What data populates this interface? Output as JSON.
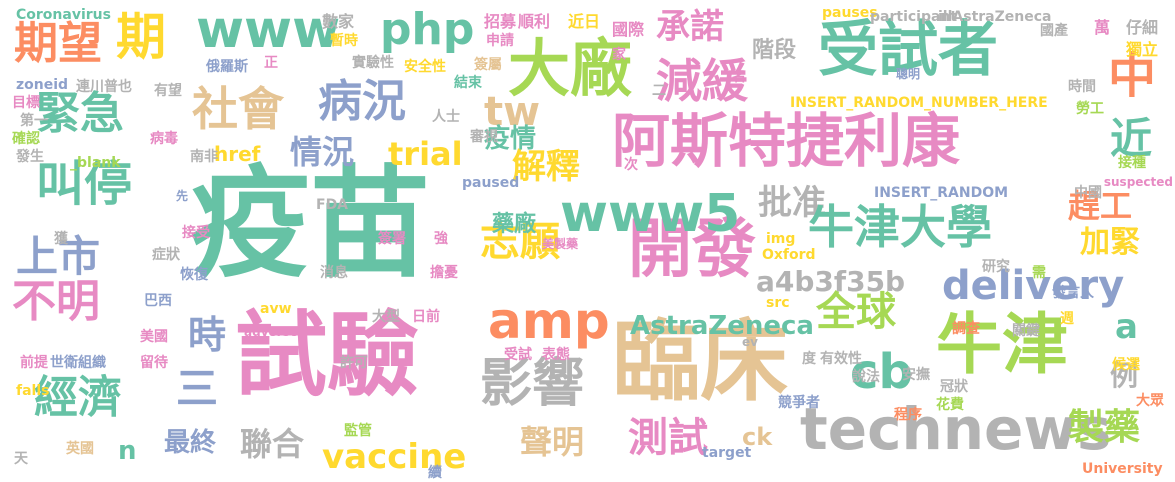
{
  "palette": {
    "green": "#66c2a5",
    "orange": "#fc8d62",
    "blue": "#8da0cb",
    "pink": "#e78ac3",
    "lime": "#a6d854",
    "yellow": "#ffd92f",
    "tan": "#e5c494",
    "gray": "#b3b3b3"
  },
  "words": [
    {
      "t": "疫苗",
      "c": "green"
    },
    {
      "t": "試驗",
      "c": "pink"
    },
    {
      "t": "臨床",
      "c": "tan"
    },
    {
      "t": "開發",
      "c": "pink"
    },
    {
      "t": "阿斯特捷利康",
      "c": "pink"
    },
    {
      "t": "受試者",
      "c": "green"
    },
    {
      "t": "大廠",
      "c": "lime"
    },
    {
      "t": "牛津",
      "c": "lime"
    },
    {
      "t": "technews",
      "c": "gray"
    },
    {
      "t": "www",
      "c": "green"
    },
    {
      "t": "期",
      "c": "yellow"
    },
    {
      "t": "期望",
      "c": "orange"
    },
    {
      "t": "php",
      "c": "green"
    },
    {
      "t": "緊急",
      "c": "green"
    },
    {
      "t": "社會",
      "c": "tan"
    },
    {
      "t": "病況",
      "c": "blue"
    },
    {
      "t": "減緩",
      "c": "pink"
    },
    {
      "t": "承諾",
      "c": "pink"
    },
    {
      "t": "中",
      "c": "orange"
    },
    {
      "t": "叫停",
      "c": "green"
    },
    {
      "t": "上市",
      "c": "blue"
    },
    {
      "t": "不明",
      "c": "pink"
    },
    {
      "t": "tw",
      "c": "tan"
    },
    {
      "t": "情況",
      "c": "blue"
    },
    {
      "t": "trial",
      "c": "yellow"
    },
    {
      "t": "解釋",
      "c": "yellow"
    },
    {
      "t": "疫情",
      "c": "green"
    },
    {
      "t": "近",
      "c": "green"
    },
    {
      "t": "www5",
      "c": "green"
    },
    {
      "t": "批准",
      "c": "gray"
    },
    {
      "t": "牛津大學",
      "c": "green"
    },
    {
      "t": "趕工",
      "c": "orange"
    },
    {
      "t": "加緊",
      "c": "yellow"
    },
    {
      "t": "志願",
      "c": "yellow"
    },
    {
      "t": "delivery",
      "c": "blue"
    },
    {
      "t": "全球",
      "c": "lime"
    },
    {
      "t": "amp",
      "c": "orange"
    },
    {
      "t": "a4b3f35b",
      "c": "gray"
    },
    {
      "t": "AstraZeneca",
      "c": "green"
    },
    {
      "t": "時",
      "c": "blue"
    },
    {
      "t": "cb",
      "c": "green"
    },
    {
      "t": "a",
      "c": "green"
    },
    {
      "t": "影響",
      "c": "gray"
    },
    {
      "t": "經濟",
      "c": "green"
    },
    {
      "t": "三",
      "c": "blue"
    },
    {
      "t": "製藥",
      "c": "lime"
    },
    {
      "t": "例",
      "c": "gray"
    },
    {
      "t": "vaccine",
      "c": "yellow"
    },
    {
      "t": "聲明",
      "c": "tan"
    },
    {
      "t": "測試",
      "c": "pink"
    },
    {
      "t": "聯合",
      "c": "gray"
    },
    {
      "t": "最終",
      "c": "blue"
    },
    {
      "t": "n",
      "c": "green"
    },
    {
      "t": "ck",
      "c": "tan"
    },
    {
      "t": "藥廠",
      "c": "green"
    },
    {
      "t": "href",
      "c": "yellow"
    },
    {
      "t": "階段",
      "c": "gray"
    },
    {
      "t": "Coronavirus",
      "c": "green"
    },
    {
      "t": "招募",
      "c": "pink"
    },
    {
      "t": "順利",
      "c": "pink"
    },
    {
      "t": "近日",
      "c": "yellow"
    },
    {
      "t": "國際",
      "c": "pink"
    },
    {
      "t": "pauses",
      "c": "yellow"
    },
    {
      "t": "participant",
      "c": "gray"
    },
    {
      "t": "illAstraZeneca",
      "c": "gray"
    },
    {
      "t": "國產",
      "c": "gray"
    },
    {
      "t": "萬",
      "c": "pink"
    },
    {
      "t": "仔細",
      "c": "gray"
    },
    {
      "t": "獨立",
      "c": "yellow"
    },
    {
      "t": "數家",
      "c": "gray"
    },
    {
      "t": "暫時",
      "c": "yellow"
    },
    {
      "t": "申請",
      "c": "pink"
    },
    {
      "t": "俄羅斯",
      "c": "blue"
    },
    {
      "t": "實驗性",
      "c": "gray"
    },
    {
      "t": "安全性",
      "c": "yellow"
    },
    {
      "t": "zoneid",
      "c": "blue"
    },
    {
      "t": "連川普也",
      "c": "gray"
    },
    {
      "t": "有望",
      "c": "gray"
    },
    {
      "t": "目標",
      "c": "pink"
    },
    {
      "t": "第一",
      "c": "gray"
    },
    {
      "t": "確認",
      "c": "lime"
    },
    {
      "t": "發生",
      "c": "gray"
    },
    {
      "t": "病毒",
      "c": "pink"
    },
    {
      "t": "_blank",
      "c": "lime"
    },
    {
      "t": "人士",
      "c": "gray"
    },
    {
      "t": "結束",
      "c": "green"
    },
    {
      "t": "簽屬",
      "c": "tan"
    },
    {
      "t": "審視",
      "c": "gray"
    },
    {
      "t": "家",
      "c": "pink"
    },
    {
      "t": "正",
      "c": "pink"
    },
    {
      "t": "名",
      "c": "pink"
    },
    {
      "t": "二",
      "c": "gray"
    },
    {
      "t": "聰明",
      "c": "blue"
    },
    {
      "t": "時間",
      "c": "gray"
    },
    {
      "t": "勞工",
      "c": "lime"
    },
    {
      "t": "INSERT_RANDOM_NUMBER_HERE",
      "c": "yellow"
    },
    {
      "t": "接種",
      "c": "lime"
    },
    {
      "t": "次",
      "c": "pink"
    },
    {
      "t": "paused",
      "c": "blue"
    },
    {
      "t": "南非",
      "c": "gray"
    },
    {
      "t": "先",
      "c": "blue"
    },
    {
      "t": "FDA",
      "c": "gray"
    },
    {
      "t": "INSERT_RANDOM",
      "c": "blue"
    },
    {
      "t": "中國",
      "c": "gray"
    },
    {
      "t": "suspected",
      "c": "pink"
    },
    {
      "t": "獲",
      "c": "gray"
    },
    {
      "t": "接受",
      "c": "pink"
    },
    {
      "t": "症狀",
      "c": "gray"
    },
    {
      "t": "恢復",
      "c": "blue"
    },
    {
      "t": "巴西",
      "c": "blue"
    },
    {
      "t": "美國",
      "c": "pink"
    },
    {
      "t": "前提",
      "c": "pink"
    },
    {
      "t": "世衛組織",
      "c": "blue"
    },
    {
      "t": "留待",
      "c": "pink"
    },
    {
      "t": "falls",
      "c": "yellow"
    },
    {
      "t": "天",
      "c": "gray"
    },
    {
      "t": "英國",
      "c": "tan"
    },
    {
      "t": "簽署",
      "c": "pink"
    },
    {
      "t": "強",
      "c": "pink"
    },
    {
      "t": "擔憂",
      "c": "pink"
    },
    {
      "t": "消息",
      "c": "gray"
    },
    {
      "t": "美製藥",
      "c": "pink"
    },
    {
      "t": "img",
      "c": "yellow"
    },
    {
      "t": "Oxford",
      "c": "yellow"
    },
    {
      "t": "src",
      "c": "yellow"
    },
    {
      "t": "avw",
      "c": "yellow"
    },
    {
      "t": "adverse",
      "c": "pink"
    },
    {
      "t": "大型",
      "c": "gray"
    },
    {
      "t": "日前",
      "c": "pink"
    },
    {
      "t": "許可",
      "c": "gray"
    },
    {
      "t": "監管",
      "c": "lime"
    },
    {
      "t": "續",
      "c": "blue"
    },
    {
      "t": "target",
      "c": "blue"
    },
    {
      "t": "受試",
      "c": "pink"
    },
    {
      "t": "表態",
      "c": "pink"
    },
    {
      "t": "ev",
      "c": "gray"
    },
    {
      "t": "度",
      "c": "gray"
    },
    {
      "t": "有效性",
      "c": "gray"
    },
    {
      "t": "安撫",
      "c": "gray"
    },
    {
      "t": "說法",
      "c": "gray"
    },
    {
      "t": "冠狀",
      "c": "gray"
    },
    {
      "t": "競爭者",
      "c": "blue"
    },
    {
      "t": "程序",
      "c": "orange"
    },
    {
      "t": "花費",
      "c": "lime"
    },
    {
      "t": "大眾",
      "c": "orange"
    },
    {
      "t": "University",
      "c": "orange"
    },
    {
      "t": "研究",
      "c": "gray"
    },
    {
      "t": "需",
      "c": "lime"
    },
    {
      "t": "發言人",
      "c": "blue"
    },
    {
      "t": "調查",
      "c": "orange"
    },
    {
      "t": "關鍵",
      "c": "gray"
    },
    {
      "t": "週",
      "c": "yellow"
    },
    {
      "t": "候選",
      "c": "yellow"
    }
  ]
}
